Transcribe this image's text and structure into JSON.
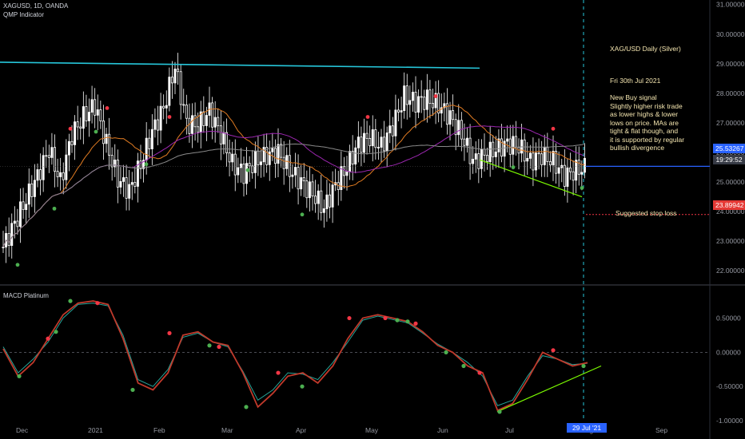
{
  "header": {
    "symbol_line": "XAGUSD, 1D, OANDA",
    "indicator": "QMP Indicator"
  },
  "macd_title": "MACD Platinum",
  "annotation": {
    "title": "XAG/USD Daily (Silver)",
    "date": "Fri 30th Jul 2021",
    "body": "New Buy signal\nSlightly higher risk trade\nas lower highs & lower\nlows on price. MAs are\ntight & flat though, and\nit is supported by regular\nbullish divergence"
  },
  "stop_label": "Suggested stop loss",
  "price_tags": {
    "last": "25.53267",
    "countdown": "19:29:52",
    "stop": "23.89942"
  },
  "date_tag": "29 Jul '21",
  "colors": {
    "up": "#ffffff",
    "down": "#ffffff",
    "cyan": "#26c6da",
    "orange": "#e07b22",
    "purple": "#9c27b0",
    "gray": "#8a8a8a",
    "green": "#4caf50",
    "red": "#f23645",
    "macd": "#c0392b",
    "signal": "#26a69a",
    "blue_tag": "#2962ff"
  },
  "chart_data": [
    {
      "type": "line",
      "title": "",
      "y_axis_ticks": [
        "31.00000",
        "30.00000",
        "29.00000",
        "28.00000",
        "27.00000",
        "26.00000",
        "25.00000",
        "24.00000",
        "23.00000",
        "22.00000"
      ],
      "ylim": [
        21.6,
        31.1
      ],
      "x_axis_ticks": [
        "Dec",
        "2021",
        "Feb",
        "Mar",
        "Apr",
        "May",
        "Jun",
        "Jul",
        "Aug",
        "Sep"
      ],
      "series": [
        {
          "name": "",
          "values": [
            22.8,
            23.6,
            24.4,
            25.2,
            26.1,
            25.0,
            26.6,
            27.2,
            27.6,
            26.3,
            25.1,
            24.7,
            25.6,
            26.7,
            27.5,
            28.9,
            27.0,
            26.9,
            27.4,
            26.6,
            25.6,
            25.3,
            25.7,
            25.9,
            26.0,
            25.4,
            25.0,
            24.6,
            24.1,
            24.9,
            25.5,
            26.3,
            26.5,
            26.2,
            26.9,
            27.9,
            27.7,
            27.8,
            27.6,
            27.2,
            26.6,
            25.7,
            25.9,
            26.1,
            26.3,
            26.2,
            25.7,
            25.9,
            25.7,
            25.2,
            25.4,
            25.5
          ]
        }
      ],
      "lines": [
        {
          "label": "",
          "values": [
            23.9,
            24.2,
            24.6,
            25.1,
            25.6,
            25.9,
            26.0,
            26.3,
            26.6,
            26.6,
            26.4,
            26.2,
            26.0,
            25.9,
            26.1,
            26.5,
            26.9,
            27.1,
            27.2,
            27.0,
            26.7,
            26.4,
            26.2,
            26.0
          ]
        }
      ],
      "macd": {
        "title": "MACD Platinum",
        "y_axis_ticks": [
          "0.50000",
          "0.00000",
          "-0.50000",
          "-1.00000"
        ],
        "ylim": [
          -1.0,
          0.95
        ],
        "macd_values": [
          0.05,
          -0.35,
          -0.15,
          0.2,
          0.55,
          0.72,
          0.75,
          0.7,
          0.2,
          -0.45,
          -0.55,
          -0.3,
          0.25,
          0.3,
          0.15,
          0.1,
          -0.3,
          -0.8,
          -0.6,
          -0.35,
          -0.3,
          -0.45,
          -0.2,
          0.2,
          0.5,
          0.55,
          0.5,
          0.45,
          0.3,
          0.1,
          0.0,
          -0.2,
          -0.3,
          -0.85,
          -0.75,
          -0.4,
          0.0,
          -0.1,
          -0.2,
          -0.15
        ],
        "signal_values": [
          0.08,
          -0.3,
          -0.1,
          0.15,
          0.5,
          0.7,
          0.72,
          0.68,
          0.25,
          -0.4,
          -0.5,
          -0.25,
          0.22,
          0.28,
          0.15,
          0.08,
          -0.28,
          -0.7,
          -0.55,
          -0.3,
          -0.32,
          -0.4,
          -0.15,
          0.15,
          0.47,
          0.53,
          0.48,
          0.43,
          0.28,
          0.12,
          0.0,
          -0.15,
          -0.35,
          -0.78,
          -0.7,
          -0.35,
          -0.05,
          -0.1,
          -0.18,
          -0.16
        ]
      }
    }
  ]
}
